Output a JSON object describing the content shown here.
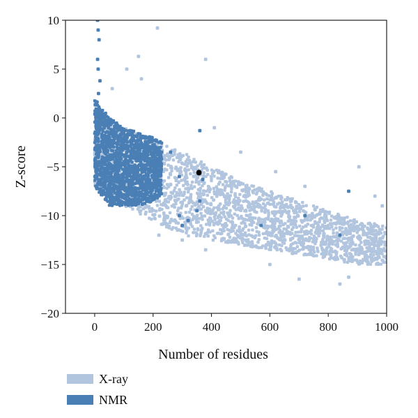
{
  "chart_data": {
    "type": "scatter",
    "xlabel": "Number of residues",
    "ylabel": "Z-score",
    "xlim": [
      -100,
      1000
    ],
    "ylim": [
      -20,
      10
    ],
    "x_ticks": [
      0,
      200,
      400,
      600,
      800,
      1000
    ],
    "y_ticks": [
      10,
      5,
      0,
      -5,
      -10,
      -15,
      -20
    ],
    "x_tick_labels": [
      "0",
      "200",
      "400",
      "600",
      "800",
      "1000"
    ],
    "y_tick_labels": [
      "10",
      "5",
      "0",
      "−5",
      "−10",
      "−15",
      "−20"
    ],
    "grid": false,
    "legend_position": "bottom-left, below plot",
    "series": [
      {
        "name": "X-ray",
        "color": "#b2c5df",
        "trend": {
          "x": [
            0,
            100,
            200,
            300,
            400,
            500,
            600,
            700,
            800,
            900,
            1000
          ],
          "upper": [
            0,
            -1,
            -2,
            -3.5,
            -5,
            -6.5,
            -7.5,
            -8.5,
            -9.5,
            -10.5,
            -11
          ],
          "lower": [
            -7,
            -9,
            -10.5,
            -12,
            -12.5,
            -13,
            -13.5,
            -14,
            -14.5,
            -15,
            -15
          ]
        },
        "outliers": [
          [
            60,
            3
          ],
          [
            110,
            5
          ],
          [
            160,
            4
          ],
          [
            215,
            9.2
          ],
          [
            380,
            6
          ],
          [
            150,
            6.3
          ],
          [
            410,
            -1
          ],
          [
            500,
            -3.5
          ],
          [
            620,
            -5.5
          ],
          [
            720,
            -7
          ],
          [
            905,
            -5
          ],
          [
            960,
            -8
          ],
          [
            985,
            -9
          ],
          [
            870,
            -16.3
          ],
          [
            840,
            -17
          ],
          [
            700,
            -16.5
          ],
          [
            600,
            -15
          ],
          [
            380,
            -13.5
          ],
          [
            300,
            -12.5
          ],
          [
            220,
            -12
          ]
        ]
      },
      {
        "name": "NMR",
        "color": "#4a7fb5",
        "trend": {
          "x": [
            0,
            50,
            100,
            150,
            200,
            230
          ],
          "upper": [
            2,
            0,
            -1,
            -1.5,
            -2,
            -2.5
          ],
          "lower": [
            -7,
            -9,
            -9,
            -9,
            -8.5,
            -8
          ]
        },
        "outliers": [
          [
            10,
            10
          ],
          [
            12,
            9
          ],
          [
            15,
            8
          ],
          [
            10,
            6
          ],
          [
            12,
            5
          ],
          [
            18,
            3.8
          ],
          [
            13,
            2.5
          ],
          [
            260,
            -3.5
          ],
          [
            290,
            -6
          ],
          [
            360,
            -1.3
          ],
          [
            290,
            -10
          ],
          [
            300,
            -11
          ],
          [
            320,
            -10.5
          ],
          [
            350,
            -9.5
          ],
          [
            360,
            -8.5
          ],
          [
            570,
            -11
          ],
          [
            720,
            -10
          ],
          [
            840,
            -12
          ],
          [
            870,
            -7.5
          ],
          [
            370,
            -6.3
          ]
        ]
      }
    ],
    "highlight_point": {
      "x": 357,
      "y": -5.6,
      "color": "#000000"
    }
  },
  "legend": {
    "items": [
      {
        "label": "X-ray",
        "color": "#b2c5df"
      },
      {
        "label": "NMR",
        "color": "#4a7fb5"
      }
    ]
  }
}
